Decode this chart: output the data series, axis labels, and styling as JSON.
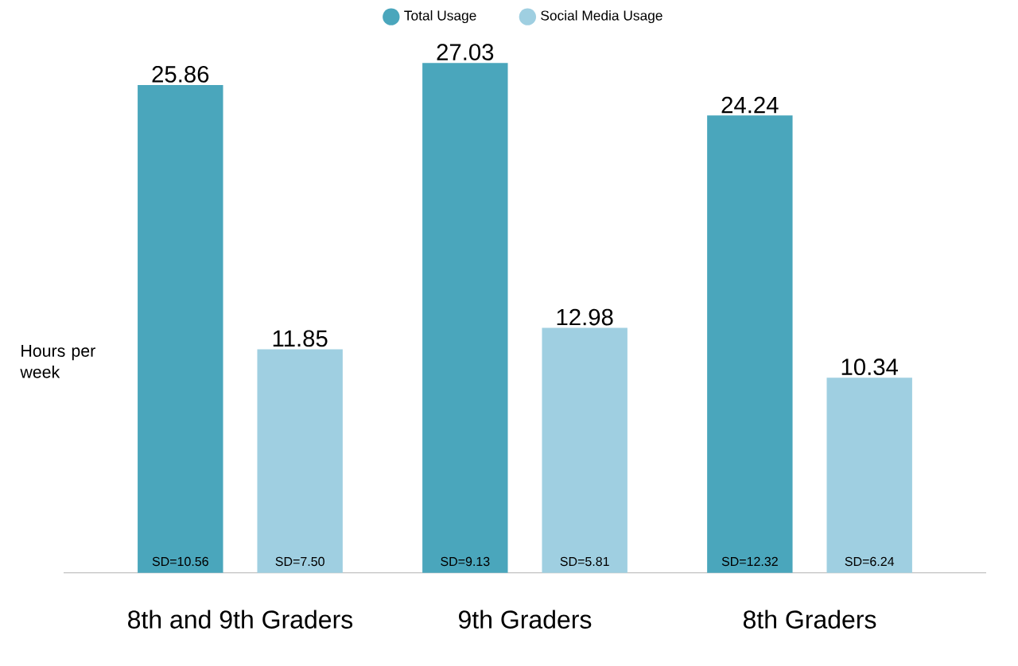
{
  "chart_data": {
    "type": "bar",
    "ylabel": "Hours per week",
    "categories": [
      "8th and 9th Graders",
      "9th Graders",
      "8th Graders"
    ],
    "series": [
      {
        "name": "Total Usage",
        "color": "#4aa6bc",
        "values": [
          25.86,
          27.03,
          24.24
        ]
      },
      {
        "name": "Social Media Usage",
        "color": "#9fcfe1",
        "values": [
          11.85,
          12.98,
          10.34
        ]
      }
    ],
    "data_labels": true,
    "legend": "top",
    "annotations": [
      "SD=10.56",
      "SD=7.50",
      "SD=9.13",
      "SD=5.81",
      "SD=12.32",
      "SD=6.24"
    ]
  }
}
